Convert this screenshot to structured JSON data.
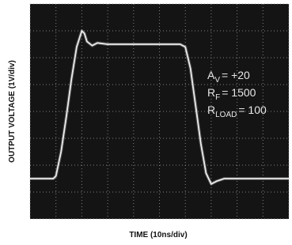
{
  "chart_data": {
    "type": "line",
    "x_label": "TIME (10ns/div)",
    "y_label": "OUTPUT VOLTAGE (1V/div)",
    "annotations": [
      {
        "symbol": "A",
        "subscript": "V",
        "value": "= +20"
      },
      {
        "symbol": "R",
        "subscript": "F",
        "value": "= 1500"
      },
      {
        "symbol": "R",
        "subscript": "LOAD",
        "value": "= 100"
      }
    ],
    "x": [
      0,
      9,
      10,
      12,
      14,
      16,
      18,
      20,
      21,
      22,
      24,
      26,
      30,
      40,
      50,
      58,
      60,
      62,
      64,
      66,
      68,
      70,
      72,
      75,
      80,
      90,
      100
    ],
    "series": [
      {
        "color": "#ececec",
        "values": [
          -2.5,
          -2.5,
          -2.4,
          -1.5,
          -0.2,
          1.2,
          2.4,
          3.0,
          2.9,
          2.6,
          2.45,
          2.55,
          2.5,
          2.5,
          2.5,
          2.5,
          2.4,
          1.6,
          0.2,
          -1.2,
          -2.3,
          -2.7,
          -2.6,
          -2.5,
          -2.5,
          -2.5,
          -2.5
        ]
      }
    ],
    "xlim": [
      0,
      100
    ],
    "ylim": [
      -4,
      4
    ],
    "xticks": [
      0,
      10,
      20,
      30,
      40,
      50,
      60,
      70,
      80,
      90,
      100
    ],
    "yticks": [
      -4,
      -3,
      -2,
      -1,
      0,
      1,
      2,
      3,
      4
    ],
    "grid": true,
    "background": "#141414",
    "grid_color": "#9a9a9a"
  }
}
